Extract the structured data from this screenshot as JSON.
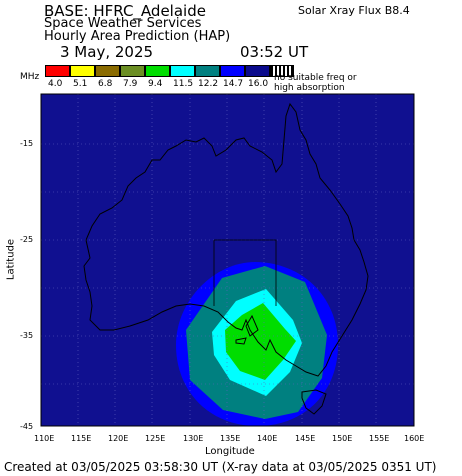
{
  "header": {
    "base": "BASE: HFRC_Adelaide",
    "org": "Space Weather Services",
    "product": "Hourly Area Prediction (HAP)",
    "date": "3 May, 2025",
    "time": "03:52 UT",
    "flux": "Solar Xray Flux B8.4"
  },
  "legend": {
    "unit": "MHz",
    "no_suitable_1": "no suitable freq or",
    "no_suitable_2": "high absorption",
    "bands": [
      {
        "color": "#ff0000",
        "label": "4.0"
      },
      {
        "color": "#ffff00",
        "label": "5.1"
      },
      {
        "color": "#8a6b00",
        "label": "6.8"
      },
      {
        "color": "#6b8e23",
        "label": "7.9"
      },
      {
        "color": "#00dd00",
        "label": "9.4"
      },
      {
        "color": "#00ffff",
        "label": "11.5"
      },
      {
        "color": "#008080",
        "label": "12.2"
      },
      {
        "color": "#0000ff",
        "label": "14.7"
      },
      {
        "color": "#0a0a8c",
        "label": "16.0"
      }
    ]
  },
  "axes": {
    "ylabel": "Latitude",
    "xlabel": "Longitude",
    "yticks": [
      "-15",
      "-25",
      "-35",
      "-45"
    ],
    "xticks": [
      "110E",
      "115E",
      "120E",
      "125E",
      "130E",
      "135E",
      "140E",
      "145E",
      "150E",
      "155E",
      "160E"
    ]
  },
  "footer": "Created at 03/05/2025 03:58:30 UT (X-ray data at 03/05/2025 0351 UT)",
  "colors": {
    "background": "#101090",
    "coast": "#000000",
    "grid": "#6060c0"
  }
}
